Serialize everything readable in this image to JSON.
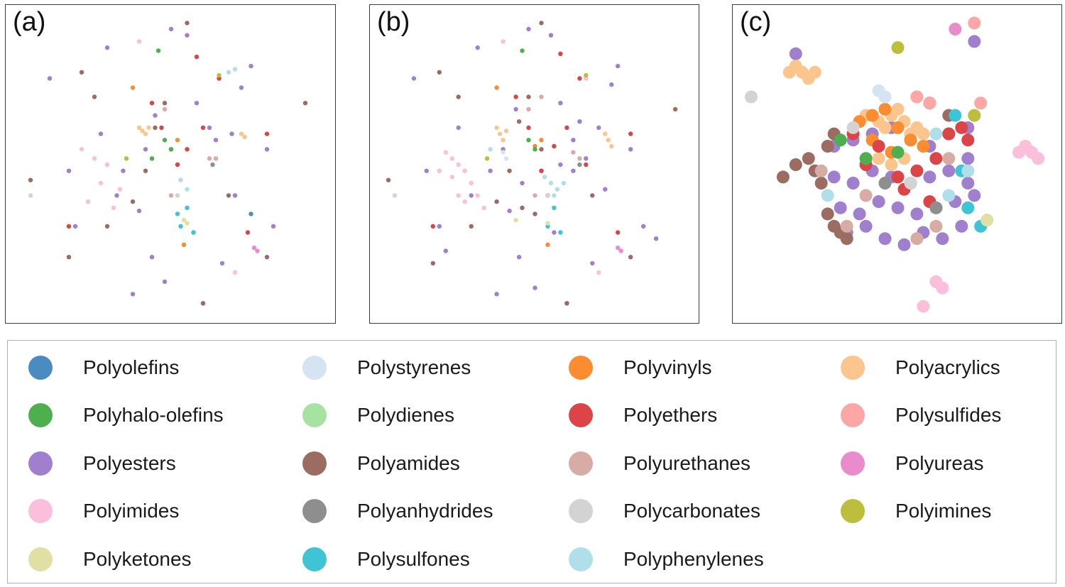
{
  "colors": {
    "Polyolefins": "#4a8bc2",
    "Polystyrenes": "#d5e3f3",
    "Polyvinyls": "#fb8c2f",
    "Polyacrylics": "#fdc58e",
    "Polyhalo-olefins": "#4daf4e",
    "Polydienes": "#a6e3a0",
    "Polyethers": "#dd4448",
    "Polysulfides": "#fca6a6",
    "Polyesters": "#9f7fce",
    "Polyamides": "#9c6c62",
    "Polyurethanes": "#d6aca4",
    "Polyureas": "#e98cce",
    "Polyimides": "#fbbedb",
    "Polyanhydrides": "#8e8e8e",
    "Polycarbonates": "#d3d3d3",
    "Polyimines": "#bdbd3e",
    "Polyketones": "#e0e0a4",
    "Polysulfones": "#3ec4d4",
    "Polyphenylenes": "#b1dfe9"
  },
  "chart_data": [
    {
      "type": "scatter",
      "panel_label": "(a)",
      "title": "",
      "xlabel": "",
      "ylabel": "",
      "grid": false,
      "series": [
        {
          "name": "Polyesters",
          "x": [
            12,
            28,
            40,
            55,
            66,
            80,
            62,
            44,
            30,
            48,
            70,
            58,
            35,
            75,
            20,
            52,
            64,
            45,
            38,
            82,
            18,
            60,
            50,
            72,
            42,
            33,
            57,
            69
          ],
          "y": [
            78,
            60,
            35,
            92,
            18,
            55,
            62,
            20,
            88,
            12,
            40,
            70,
            48,
            82,
            30,
            50,
            58,
            66,
            8,
            30,
            48,
            5,
            94,
            75,
            55,
            40,
            28,
            60
          ]
        },
        {
          "name": "Polyamides",
          "x": [
            6,
            22,
            45,
            50,
            38,
            92,
            55,
            30,
            18,
            68,
            48,
            42,
            80,
            26,
            60
          ],
          "y": [
            45,
            80,
            62,
            55,
            38,
            70,
            96,
            30,
            20,
            40,
            70,
            48,
            20,
            72,
            5
          ]
        },
        {
          "name": "Polyimides",
          "x": [
            22,
            26,
            30,
            28,
            34,
            24,
            32,
            65,
            40,
            70
          ],
          "y": [
            55,
            52,
            50,
            44,
            42,
            38,
            36,
            78,
            90,
            15
          ]
        },
        {
          "name": "Polyethers",
          "x": [
            47,
            55,
            60,
            52,
            80,
            58,
            18,
            65,
            74,
            44
          ],
          "y": [
            62,
            55,
            62,
            50,
            60,
            85,
            30,
            78,
            28,
            70
          ]
        },
        {
          "name": "Polyacrylics",
          "x": [
            40,
            41,
            42,
            43,
            72,
            73
          ],
          "y": [
            62,
            61,
            60,
            62,
            60,
            59
          ]
        },
        {
          "name": "Polyvinyls",
          "x": [
            38,
            52,
            54
          ],
          "y": [
            75,
            58,
            24
          ]
        },
        {
          "name": "Polyhalo-olefins",
          "x": [
            46,
            50,
            48,
            44
          ],
          "y": [
            87,
            55,
            58,
            52
          ]
        },
        {
          "name": "Polysulfones",
          "x": [
            55,
            57,
            53,
            52
          ],
          "y": [
            36,
            28,
            30,
            34
          ]
        },
        {
          "name": "Polyphenylenes",
          "x": [
            53,
            55,
            68,
            70
          ],
          "y": [
            45,
            42,
            80,
            81
          ]
        },
        {
          "name": "Polyurethanes",
          "x": [
            48,
            64,
            50,
            62
          ],
          "y": [
            68,
            52,
            40,
            52
          ]
        },
        {
          "name": "Polyureas",
          "x": [
            76,
            77
          ],
          "y": [
            23,
            22
          ]
        },
        {
          "name": "Polyimines",
          "x": [
            36,
            65
          ],
          "y": [
            52,
            79
          ]
        },
        {
          "name": "Polyketones",
          "x": [
            54,
            55
          ],
          "y": [
            32,
            31
          ]
        },
        {
          "name": "Polyanhydrides",
          "x": [
            63
          ],
          "y": [
            50
          ]
        },
        {
          "name": "Polyolefins",
          "x": [
            75
          ],
          "y": [
            34
          ]
        },
        {
          "name": "Polycarbonates",
          "x": [
            6,
            52
          ],
          "y": [
            40,
            40
          ]
        }
      ]
    },
    {
      "type": "scatter",
      "panel_label": "(b)",
      "title": "",
      "xlabel": "",
      "ylabel": "",
      "grid": false,
      "series": [
        {
          "name": "Polyesters",
          "x": [
            12,
            26,
            42,
            55,
            68,
            80,
            64,
            45,
            32,
            50,
            72,
            58,
            36,
            76,
            20,
            52,
            62,
            44,
            38,
            84,
            16,
            60,
            48,
            74,
            40,
            30,
            56,
            70,
            66,
            58,
            22,
            88,
            46,
            62
          ],
          "y": [
            78,
            62,
            35,
            92,
            18,
            55,
            64,
            20,
            88,
            10,
            42,
            70,
            48,
            82,
            30,
            48,
            58,
            68,
            8,
            30,
            48,
            5,
            94,
            76,
            55,
            40,
            28,
            62,
            52,
            50,
            22,
            26,
            44,
            48
          ]
        },
        {
          "name": "Polyamides",
          "x": [
            4,
            20,
            45,
            52,
            38,
            94,
            52,
            30,
            18,
            68,
            48,
            42,
            80,
            26,
            60,
            46,
            50,
            54
          ],
          "y": [
            45,
            80,
            64,
            55,
            38,
            68,
            96,
            30,
            18,
            40,
            72,
            48,
            20,
            72,
            5,
            36,
            34,
            40
          ]
        },
        {
          "name": "Polyimides",
          "x": [
            22,
            24,
            26,
            28,
            30,
            32,
            24,
            28,
            34,
            66,
            40,
            70,
            20,
            26
          ],
          "y": [
            54,
            52,
            50,
            48,
            44,
            40,
            46,
            38,
            36,
            78,
            90,
            15,
            48,
            40
          ]
        },
        {
          "name": "Polyethers",
          "x": [
            48,
            56,
            60,
            52,
            80,
            58,
            18,
            64,
            76,
            44,
            54,
            66
          ],
          "y": [
            62,
            56,
            62,
            48,
            60,
            86,
            30,
            78,
            28,
            72,
            40,
            50
          ]
        },
        {
          "name": "Polyacrylics",
          "x": [
            38,
            39,
            40,
            41,
            72,
            73,
            74
          ],
          "y": [
            62,
            60,
            58,
            61,
            60,
            58,
            56
          ]
        },
        {
          "name": "Polyvinyls",
          "x": [
            38,
            52,
            54,
            50
          ],
          "y": [
            75,
            58,
            24,
            56
          ]
        },
        {
          "name": "Polyhalo-olefins",
          "x": [
            46,
            50,
            48
          ],
          "y": [
            87,
            55,
            58
          ]
        },
        {
          "name": "Polysulfones",
          "x": [
            56,
            58,
            54
          ],
          "y": [
            36,
            28,
            30
          ]
        },
        {
          "name": "Polyphenylenes",
          "x": [
            53,
            55,
            57,
            59,
            56,
            36
          ],
          "y": [
            46,
            44,
            42,
            44,
            40,
            55
          ]
        },
        {
          "name": "Polyurethanes",
          "x": [
            48,
            64,
            50,
            62,
            52
          ],
          "y": [
            68,
            52,
            40,
            54,
            72
          ]
        },
        {
          "name": "Polyureas",
          "x": [
            76,
            77
          ],
          "y": [
            23,
            22
          ]
        },
        {
          "name": "Polyimines",
          "x": [
            35,
            66
          ],
          "y": [
            52,
            79
          ]
        },
        {
          "name": "Polyketones",
          "x": [
            44,
            54
          ],
          "y": [
            32,
            31
          ]
        },
        {
          "name": "Polyanhydrides",
          "x": [
            64
          ],
          "y": [
            50
          ]
        },
        {
          "name": "Polystyrenes",
          "x": [
            40,
            41
          ],
          "y": [
            54,
            52
          ]
        },
        {
          "name": "Polycarbonates",
          "x": [
            6,
            54
          ],
          "y": [
            40,
            40
          ]
        }
      ]
    },
    {
      "type": "scatter",
      "panel_label": "(c)",
      "title": "",
      "xlabel": "",
      "ylabel": "",
      "grid": false,
      "series": [
        {
          "name": "Polyesters",
          "x": [
            30,
            36,
            42,
            48,
            54,
            60,
            66,
            72,
            30,
            36,
            42,
            48,
            54,
            60,
            66,
            72,
            32,
            38,
            44,
            50,
            56,
            62,
            68,
            74,
            34,
            40,
            46,
            52,
            58,
            64,
            70,
            72,
            18,
            74
          ],
          "y": [
            56,
            58,
            60,
            62,
            58,
            56,
            60,
            62,
            46,
            44,
            48,
            46,
            44,
            46,
            48,
            44,
            36,
            34,
            38,
            36,
            34,
            36,
            38,
            40,
            28,
            30,
            26,
            24,
            28,
            26,
            30,
            52,
            86,
            90
          ]
        },
        {
          "name": "Polyamides",
          "x": [
            14,
            18,
            22,
            24,
            26,
            28,
            30,
            32,
            34,
            28,
            30,
            60,
            66
          ],
          "y": [
            46,
            50,
            52,
            48,
            44,
            34,
            30,
            28,
            26,
            56,
            60,
            70,
            66
          ]
        },
        {
          "name": "Polyacrylics",
          "x": [
            16,
            18,
            20,
            22,
            24,
            40,
            44,
            46,
            48,
            50,
            52,
            54,
            56,
            58,
            44,
            48,
            52
          ],
          "y": [
            80,
            82,
            80,
            78,
            80,
            66,
            64,
            62,
            66,
            68,
            64,
            60,
            62,
            60,
            52,
            50,
            52
          ]
        },
        {
          "name": "Polyvinyls",
          "x": [
            38,
            42,
            46,
            50,
            54,
            58,
            42,
            48
          ],
          "y": [
            64,
            66,
            68,
            62,
            58,
            56,
            58,
            54
          ]
        },
        {
          "name": "Polyethers",
          "x": [
            36,
            40,
            44,
            50,
            56,
            62,
            66,
            70,
            72,
            52,
            60
          ],
          "y": [
            60,
            50,
            56,
            46,
            48,
            52,
            60,
            62,
            58,
            42,
            38
          ]
        },
        {
          "name": "Polyimides",
          "x": [
            88,
            90,
            92,
            94,
            62,
            64,
            58
          ],
          "y": [
            54,
            56,
            54,
            52,
            12,
            10,
            4
          ]
        },
        {
          "name": "Polyurethanes",
          "x": [
            26,
            34,
            40,
            56,
            62,
            66
          ],
          "y": [
            48,
            30,
            40,
            26,
            30,
            52
          ]
        },
        {
          "name": "Polysulfides",
          "x": [
            56,
            60,
            74,
            76
          ],
          "y": [
            72,
            70,
            96,
            70
          ]
        },
        {
          "name": "Polystyrenes",
          "x": [
            44,
            46
          ],
          "y": [
            74,
            72
          ]
        },
        {
          "name": "Polysulfones",
          "x": [
            68,
            70,
            72,
            76
          ],
          "y": [
            66,
            48,
            36,
            30
          ]
        },
        {
          "name": "Polyphenylenes",
          "x": [
            62,
            66,
            72,
            28
          ],
          "y": [
            60,
            40,
            48,
            40
          ]
        },
        {
          "name": "Polyhalo-olefins",
          "x": [
            32,
            40,
            50
          ],
          "y": [
            58,
            52,
            54
          ]
        },
        {
          "name": "Polyketones",
          "x": [
            74,
            78
          ],
          "y": [
            66,
            32
          ]
        },
        {
          "name": "Polyimines",
          "x": [
            50,
            74
          ],
          "y": [
            88,
            66
          ]
        },
        {
          "name": "Polyureas",
          "x": [
            68
          ],
          "y": [
            94
          ]
        },
        {
          "name": "Polycarbonates",
          "x": [
            4,
            36,
            54
          ],
          "y": [
            72,
            62,
            44
          ]
        },
        {
          "name": "Polyanhydrides",
          "x": [
            46,
            62
          ],
          "y": [
            44,
            36
          ]
        }
      ]
    }
  ],
  "legend": {
    "items": [
      {
        "label": "Polyolefins",
        "color": "#4a8bc2"
      },
      {
        "label": "Polystyrenes",
        "color": "#d5e3f3"
      },
      {
        "label": "Polyvinyls",
        "color": "#fb8c2f"
      },
      {
        "label": "Polyacrylics",
        "color": "#fdc58e"
      },
      {
        "label": "Polyhalo-olefins",
        "color": "#4daf4e"
      },
      {
        "label": "Polydienes",
        "color": "#a6e3a0"
      },
      {
        "label": "Polyethers",
        "color": "#dd4448"
      },
      {
        "label": "Polysulfides",
        "color": "#fca6a6"
      },
      {
        "label": "Polyesters",
        "color": "#9f7fce"
      },
      {
        "label": "Polyamides",
        "color": "#9c6c62"
      },
      {
        "label": "Polyurethanes",
        "color": "#d6aca4"
      },
      {
        "label": "Polyureas",
        "color": "#e98cce"
      },
      {
        "label": "Polyimides",
        "color": "#fbbedb"
      },
      {
        "label": "Polyanhydrides",
        "color": "#8e8e8e"
      },
      {
        "label": "Polycarbonates",
        "color": "#d3d3d3"
      },
      {
        "label": "Polyimines",
        "color": "#bdbd3e"
      },
      {
        "label": "Polyketones",
        "color": "#e0e0a4"
      },
      {
        "label": "Polysulfones",
        "color": "#3ec4d4"
      },
      {
        "label": "Polyphenylenes",
        "color": "#b1dfe9"
      }
    ]
  }
}
